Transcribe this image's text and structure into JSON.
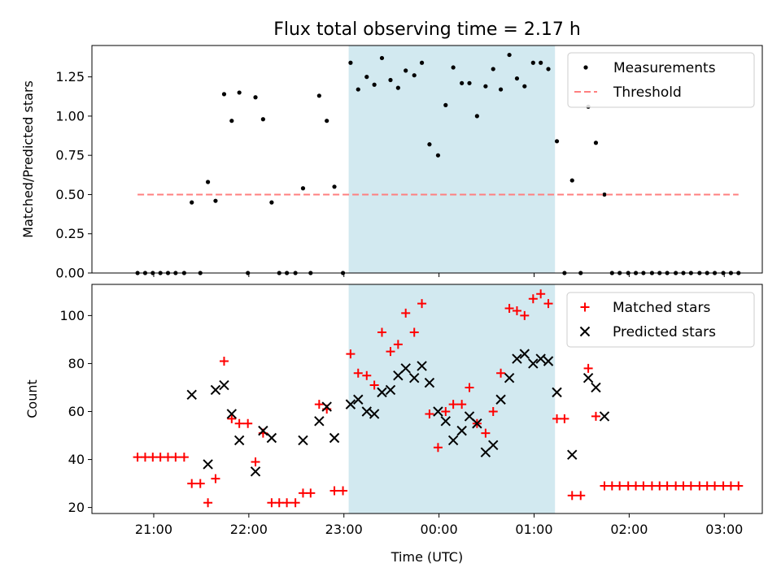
{
  "chart_data": [
    {
      "type": "scatter",
      "title": "Flux total observing time = 2.17 h",
      "ylabel": "Matched/Predicted stars",
      "xlabel": "",
      "ylim": [
        0,
        1.45
      ],
      "xlim": [
        -0.65,
        6.4
      ],
      "yticks": [
        "0.00",
        "0.25",
        "0.50",
        "0.75",
        "1.00",
        "1.25"
      ],
      "legend_position": "upper-right",
      "shaded_interval": [
        2.05,
        4.22
      ],
      "shaded_color": "#d2e9f0",
      "series": [
        {
          "name": "Measurements",
          "marker": "dot",
          "color": "#000000",
          "points": [
            [
              -0.17,
              0
            ],
            [
              -0.09,
              0
            ],
            [
              -0.01,
              0
            ],
            [
              0.07,
              0
            ],
            [
              0.15,
              0
            ],
            [
              0.23,
              0
            ],
            [
              0.32,
              0
            ],
            [
              0.4,
              0.45
            ],
            [
              0.49,
              0
            ],
            [
              0.57,
              0.58
            ],
            [
              0.65,
              0.46
            ],
            [
              0.74,
              1.14
            ],
            [
              0.82,
              0.97
            ],
            [
              0.9,
              1.15
            ],
            [
              0.99,
              0
            ],
            [
              1.07,
              1.12
            ],
            [
              1.15,
              0.98
            ],
            [
              1.24,
              0.45
            ],
            [
              1.32,
              0
            ],
            [
              1.4,
              0
            ],
            [
              1.49,
              0
            ],
            [
              1.57,
              0.54
            ],
            [
              1.65,
              0
            ],
            [
              1.74,
              1.13
            ],
            [
              1.82,
              0.97
            ],
            [
              1.9,
              0.55
            ],
            [
              1.99,
              0
            ],
            [
              2.07,
              1.34
            ],
            [
              2.15,
              1.17
            ],
            [
              2.24,
              1.25
            ],
            [
              2.32,
              1.2
            ],
            [
              2.4,
              1.37
            ],
            [
              2.49,
              1.23
            ],
            [
              2.57,
              1.18
            ],
            [
              2.65,
              1.29
            ],
            [
              2.74,
              1.26
            ],
            [
              2.82,
              1.34
            ],
            [
              2.9,
              0.82
            ],
            [
              2.99,
              0.75
            ],
            [
              3.07,
              1.07
            ],
            [
              3.15,
              1.31
            ],
            [
              3.24,
              1.21
            ],
            [
              3.32,
              1.21
            ],
            [
              3.4,
              1.0
            ],
            [
              3.49,
              1.19
            ],
            [
              3.57,
              1.3
            ],
            [
              3.65,
              1.17
            ],
            [
              3.74,
              1.39
            ],
            [
              3.82,
              1.24
            ],
            [
              3.9,
              1.19
            ],
            [
              3.99,
              1.34
            ],
            [
              4.07,
              1.34
            ],
            [
              4.15,
              1.3
            ],
            [
              4.24,
              0.84
            ],
            [
              4.32,
              0
            ],
            [
              4.4,
              0.59
            ],
            [
              4.49,
              0
            ],
            [
              4.57,
              1.06
            ],
            [
              4.65,
              0.83
            ],
            [
              4.74,
              0.5
            ],
            [
              4.82,
              0
            ],
            [
              4.9,
              0
            ],
            [
              4.99,
              0
            ],
            [
              5.07,
              0
            ],
            [
              5.15,
              0
            ],
            [
              5.24,
              0
            ],
            [
              5.32,
              0
            ],
            [
              5.4,
              0
            ],
            [
              5.49,
              0
            ],
            [
              5.57,
              0
            ],
            [
              5.65,
              0
            ],
            [
              5.74,
              0
            ],
            [
              5.82,
              0
            ],
            [
              5.9,
              0
            ],
            [
              5.99,
              0
            ],
            [
              6.07,
              0
            ],
            [
              6.15,
              0
            ]
          ]
        },
        {
          "name": "Threshold",
          "marker": "dashed-line",
          "color": "#ff7f7f",
          "points": [
            [
              -0.17,
              0.5
            ],
            [
              6.15,
              0.5
            ]
          ]
        }
      ]
    },
    {
      "type": "scatter",
      "title": "",
      "ylabel": "Count",
      "xlabel": "Time (UTC)",
      "ylim": [
        17.5,
        113
      ],
      "xlim": [
        -0.65,
        6.4
      ],
      "yticks": [
        "20",
        "40",
        "60",
        "80",
        "100"
      ],
      "xticks": [
        {
          "v": 0,
          "label": "21:00"
        },
        {
          "v": 1,
          "label": "22:00"
        },
        {
          "v": 2,
          "label": "23:00"
        },
        {
          "v": 3,
          "label": "00:00"
        },
        {
          "v": 4,
          "label": "01:00"
        },
        {
          "v": 5,
          "label": "02:00"
        },
        {
          "v": 6,
          "label": "03:00"
        }
      ],
      "legend_position": "upper-right",
      "shaded_interval": [
        2.05,
        4.22
      ],
      "shaded_color": "#d2e9f0",
      "series": [
        {
          "name": "Matched stars",
          "marker": "plus",
          "color": "#ff0000",
          "points": [
            [
              -0.17,
              41
            ],
            [
              -0.09,
              41
            ],
            [
              -0.01,
              41
            ],
            [
              0.07,
              41
            ],
            [
              0.15,
              41
            ],
            [
              0.23,
              41
            ],
            [
              0.32,
              41
            ],
            [
              0.4,
              30
            ],
            [
              0.49,
              30
            ],
            [
              0.57,
              22
            ],
            [
              0.65,
              32
            ],
            [
              0.74,
              81
            ],
            [
              0.82,
              57
            ],
            [
              0.9,
              55
            ],
            [
              0.99,
              55
            ],
            [
              1.07,
              39
            ],
            [
              1.15,
              51
            ],
            [
              1.24,
              22
            ],
            [
              1.32,
              22
            ],
            [
              1.4,
              22
            ],
            [
              1.49,
              22
            ],
            [
              1.57,
              26
            ],
            [
              1.65,
              26
            ],
            [
              1.74,
              63
            ],
            [
              1.82,
              61
            ],
            [
              1.9,
              27
            ],
            [
              1.99,
              27
            ],
            [
              2.07,
              84
            ],
            [
              2.15,
              76
            ],
            [
              2.24,
              75
            ],
            [
              2.32,
              71
            ],
            [
              2.4,
              93
            ],
            [
              2.49,
              85
            ],
            [
              2.57,
              88
            ],
            [
              2.65,
              101
            ],
            [
              2.74,
              93
            ],
            [
              2.82,
              105
            ],
            [
              2.9,
              59
            ],
            [
              2.99,
              45
            ],
            [
              3.07,
              60
            ],
            [
              3.15,
              63
            ],
            [
              3.24,
              63
            ],
            [
              3.32,
              70
            ],
            [
              3.4,
              55
            ],
            [
              3.49,
              51
            ],
            [
              3.57,
              60
            ],
            [
              3.65,
              76
            ],
            [
              3.74,
              103
            ],
            [
              3.82,
              102
            ],
            [
              3.9,
              100
            ],
            [
              3.99,
              107
            ],
            [
              4.07,
              109
            ],
            [
              4.15,
              105
            ],
            [
              4.24,
              57
            ],
            [
              4.32,
              57
            ],
            [
              4.4,
              25
            ],
            [
              4.49,
              25
            ],
            [
              4.57,
              78
            ],
            [
              4.65,
              58
            ],
            [
              4.74,
              29
            ],
            [
              4.82,
              29
            ],
            [
              4.9,
              29
            ],
            [
              4.99,
              29
            ],
            [
              5.07,
              29
            ],
            [
              5.15,
              29
            ],
            [
              5.24,
              29
            ],
            [
              5.32,
              29
            ],
            [
              5.4,
              29
            ],
            [
              5.49,
              29
            ],
            [
              5.57,
              29
            ],
            [
              5.65,
              29
            ],
            [
              5.74,
              29
            ],
            [
              5.82,
              29
            ],
            [
              5.9,
              29
            ],
            [
              5.99,
              29
            ],
            [
              6.07,
              29
            ],
            [
              6.15,
              29
            ]
          ]
        },
        {
          "name": "Predicted stars",
          "marker": "x",
          "color": "#000000",
          "points": [
            [
              0.4,
              67
            ],
            [
              0.57,
              38
            ],
            [
              0.65,
              69
            ],
            [
              0.74,
              71
            ],
            [
              0.82,
              59
            ],
            [
              0.9,
              48
            ],
            [
              1.07,
              35
            ],
            [
              1.15,
              52
            ],
            [
              1.24,
              49
            ],
            [
              1.57,
              48
            ],
            [
              1.74,
              56
            ],
            [
              1.82,
              62
            ],
            [
              1.9,
              49
            ],
            [
              2.07,
              63
            ],
            [
              2.15,
              65
            ],
            [
              2.24,
              60
            ],
            [
              2.32,
              59
            ],
            [
              2.4,
              68
            ],
            [
              2.49,
              69
            ],
            [
              2.57,
              75
            ],
            [
              2.65,
              78
            ],
            [
              2.74,
              74
            ],
            [
              2.82,
              79
            ],
            [
              2.9,
              72
            ],
            [
              2.99,
              60
            ],
            [
              3.07,
              56
            ],
            [
              3.15,
              48
            ],
            [
              3.24,
              52
            ],
            [
              3.32,
              58
            ],
            [
              3.4,
              55
            ],
            [
              3.49,
              43
            ],
            [
              3.57,
              46
            ],
            [
              3.65,
              65
            ],
            [
              3.74,
              74
            ],
            [
              3.82,
              82
            ],
            [
              3.9,
              84
            ],
            [
              3.99,
              80
            ],
            [
              4.07,
              82
            ],
            [
              4.15,
              81
            ],
            [
              4.24,
              68
            ],
            [
              4.4,
              42
            ],
            [
              4.57,
              74
            ],
            [
              4.65,
              70
            ],
            [
              4.74,
              58
            ]
          ]
        }
      ]
    }
  ]
}
